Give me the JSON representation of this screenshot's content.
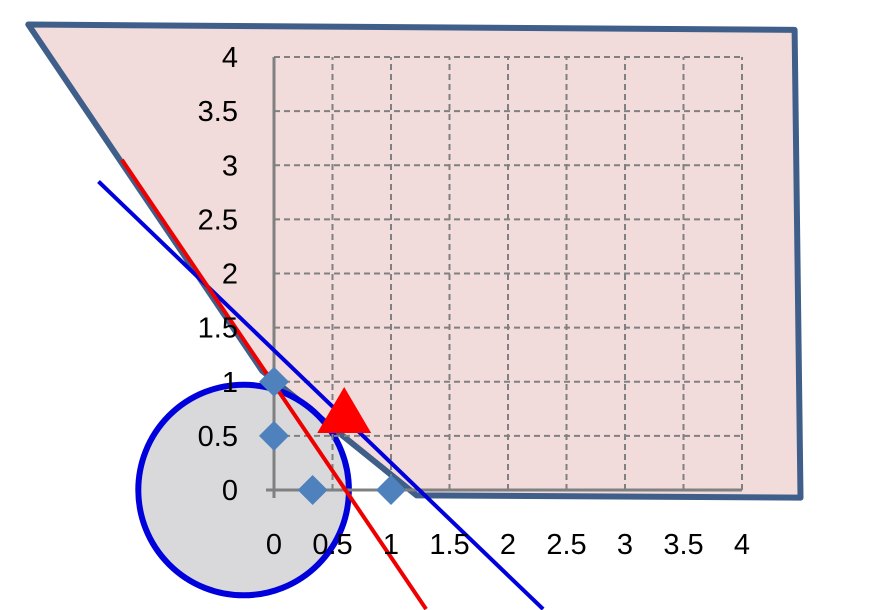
{
  "chart_data": {
    "type": "scatter",
    "title": "",
    "xlabel": "",
    "ylabel": "",
    "xlim": [
      0,
      4
    ],
    "ylim": [
      0,
      4
    ],
    "grid": true,
    "x_ticks": [
      "0",
      "0.5",
      "1",
      "1.5",
      "2",
      "2.5",
      "3",
      "3.5",
      "4"
    ],
    "y_ticks": [
      "0",
      "0.5",
      "1",
      "1.5",
      "2",
      "2.5",
      "3",
      "3.5",
      "4"
    ],
    "points": [
      {
        "x": 0,
        "y": 1
      },
      {
        "x": 0,
        "y": 0.5
      },
      {
        "x": 0.33,
        "y": 0
      },
      {
        "x": 1,
        "y": 0
      }
    ],
    "triangle_marker": {
      "x": 0.6,
      "y": 0.6
    },
    "feasible_region": [
      {
        "x": -2.1,
        "y": 4.3
      },
      {
        "x": 4.45,
        "y": 4.25
      },
      {
        "x": 4.5,
        "y": -0.07
      },
      {
        "x": 1.22,
        "y": -0.05
      },
      {
        "x": -0.1,
        "y": 1.1
      }
    ],
    "circle": {
      "cx": -0.26,
      "cy": 0,
      "r": 0.9
    },
    "lines": [
      {
        "color": "blue",
        "from": {
          "x": -1.5,
          "y": 2.85
        },
        "to": {
          "x": 2.3,
          "y": -1.1
        }
      },
      {
        "color": "red",
        "from": {
          "x": -1.3,
          "y": 3.05
        },
        "to": {
          "x": 1.3,
          "y": -1.1
        }
      }
    ],
    "colors": {
      "region_fill": "#f2dcdb",
      "region_stroke": "#3f5f8a",
      "circle_fill": "#d9d9dc",
      "circle_stroke": "#0000dd",
      "blue_line": "#0000dd",
      "red_line": "#ee0000",
      "point_marker": "#4f81bd",
      "triangle_marker": "#ff0000",
      "grid": "#808080"
    }
  }
}
